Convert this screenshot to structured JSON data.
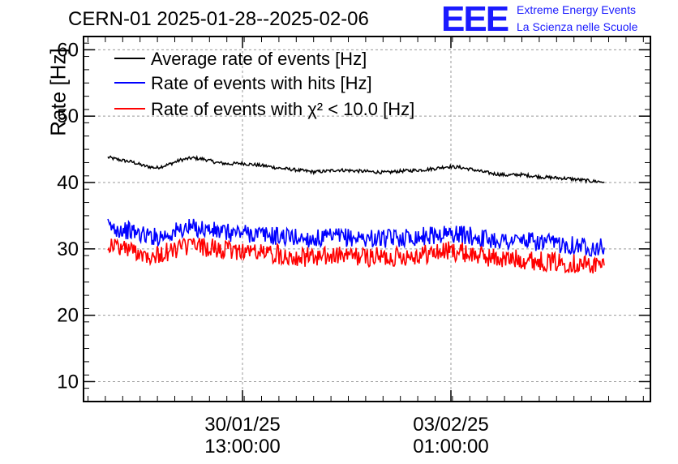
{
  "header": {
    "title": "CERN-01 2025-01-28--2025-02-06",
    "logo_text": "EEE",
    "logo_line1": "Extreme Energy Events",
    "logo_line2": "La Scienza nelle Scuole",
    "brand_color": "#1a1aff"
  },
  "chart_data": {
    "type": "line",
    "title": "CERN-01 2025-01-28--2025-02-06",
    "ylabel": "Rate [Hz]",
    "xlabel": "",
    "ylim": [
      7,
      62
    ],
    "y_ticks": [
      10,
      20,
      30,
      40,
      50,
      60
    ],
    "x_ticks": [
      {
        "date": "30/01/25",
        "time": "13:00:00"
      },
      {
        "date": "03/02/25",
        "time": "01:00:00"
      }
    ],
    "grid": true,
    "legend_position": "top-left",
    "series": [
      {
        "name": "Average rate of events [Hz]",
        "color": "#000000",
        "values": [
          43.8,
          43.4,
          43.1,
          42.5,
          42.2,
          42.7,
          43.4,
          43.7,
          43.5,
          43.0,
          42.8,
          42.9,
          42.7,
          42.5,
          42.2,
          42.0,
          41.8,
          41.6,
          41.7,
          41.9,
          41.8,
          41.7,
          41.6,
          41.5,
          41.7,
          41.8,
          41.9,
          42.1,
          42.4,
          42.3,
          42.0,
          41.6,
          41.3,
          41.1,
          41.2,
          41.0,
          40.8,
          40.7,
          40.6,
          40.4,
          40.2,
          40.1
        ]
      },
      {
        "name": "Rate of events with hits [Hz]",
        "color": "#0000ff",
        "values": [
          33.3,
          33.0,
          32.6,
          32.1,
          31.8,
          32.2,
          32.9,
          33.2,
          33.0,
          32.6,
          32.4,
          32.5,
          32.3,
          32.1,
          31.9,
          31.8,
          31.6,
          31.5,
          31.6,
          31.8,
          31.7,
          31.6,
          31.6,
          31.5,
          31.7,
          31.8,
          31.9,
          32.1,
          32.3,
          32.2,
          31.9,
          31.6,
          31.4,
          31.2,
          31.3,
          31.1,
          30.9,
          30.8,
          30.7,
          30.5,
          30.3,
          30.2
        ]
      },
      {
        "name": "Rate of events with χ² < 10.0 [Hz]",
        "color": "#ff0000",
        "values": [
          30.7,
          30.3,
          29.8,
          29.3,
          29.0,
          29.5,
          30.2,
          30.5,
          30.3,
          29.9,
          29.7,
          29.8,
          29.6,
          29.4,
          29.2,
          29.0,
          28.8,
          28.7,
          28.8,
          29.0,
          28.9,
          28.8,
          28.8,
          28.7,
          28.9,
          29.0,
          29.2,
          29.4,
          29.7,
          29.6,
          29.2,
          28.9,
          28.6,
          28.4,
          28.5,
          28.3,
          28.1,
          28.0,
          27.9,
          27.7,
          27.6,
          27.5
        ]
      }
    ]
  }
}
